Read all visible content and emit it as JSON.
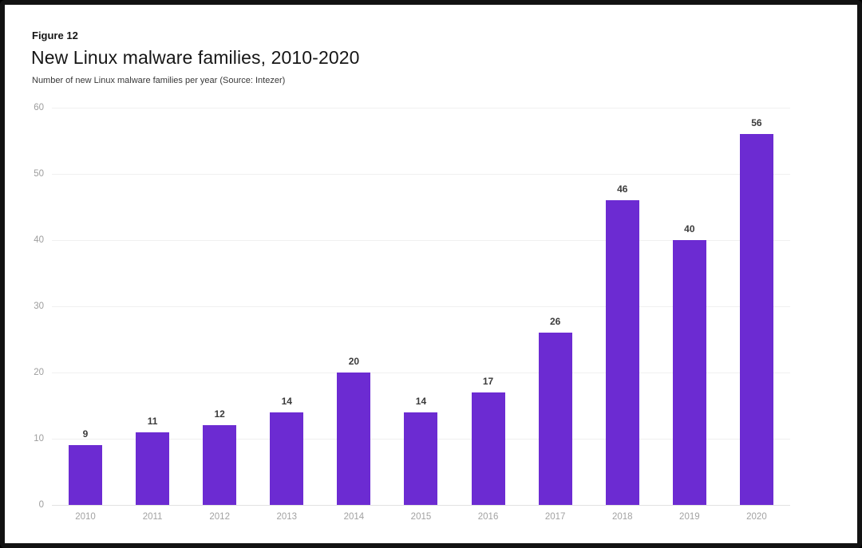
{
  "header": {
    "figure_label": "Figure 12",
    "title": "New Linux malware families, 2010-2020",
    "subtitle": "Number of new Linux malware families per year (Source: Intezer)"
  },
  "chart_data": {
    "type": "bar",
    "categories": [
      "2010",
      "2011",
      "2012",
      "2013",
      "2014",
      "2015",
      "2016",
      "2017",
      "2018",
      "2019",
      "2020"
    ],
    "values": [
      9,
      11,
      12,
      14,
      20,
      14,
      17,
      26,
      46,
      40,
      56
    ],
    "title": "New Linux malware families, 2010-2020",
    "xlabel": "",
    "ylabel": "",
    "ylim": [
      0,
      60
    ],
    "y_ticks": [
      0,
      10,
      20,
      30,
      40,
      50,
      60
    ],
    "grid": true,
    "value_labels": true,
    "legend": "none"
  },
  "colors": {
    "bar": "#6c2bd2",
    "gridline": "#f0f0f0",
    "baseline": "#e2e2e2",
    "axis_text": "#9d9d9d",
    "value_label": "#3b3b3b",
    "title_text": "#161616",
    "frame": "#121212",
    "background": "#ffffff"
  }
}
